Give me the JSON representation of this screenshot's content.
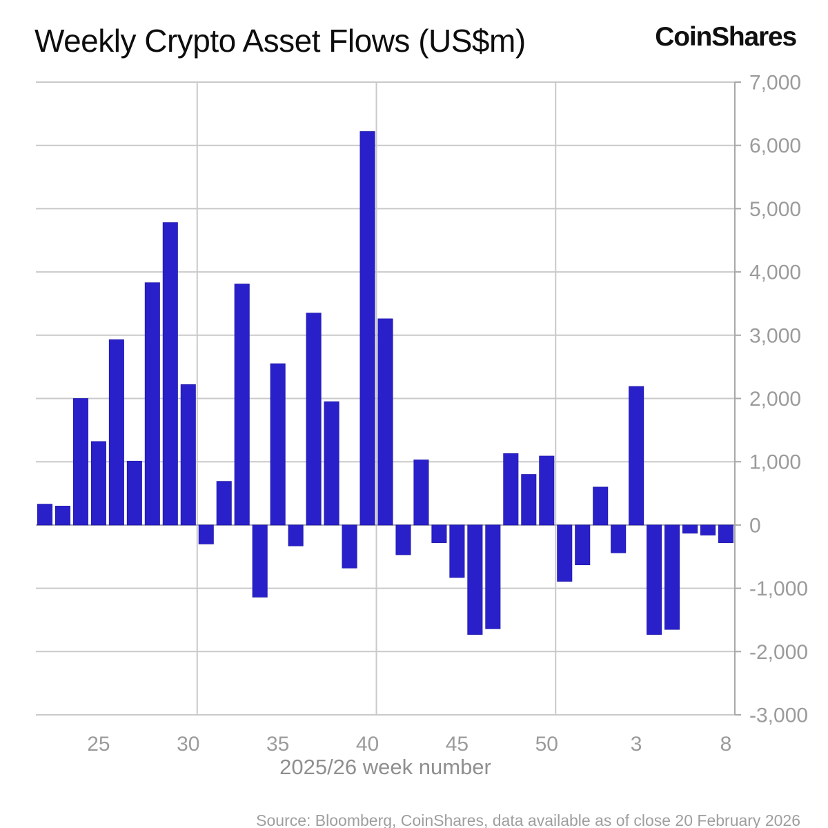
{
  "header": {
    "title": "Weekly Crypto Asset Flows (US$m)",
    "logo_text": "CoinShares"
  },
  "chart_data": {
    "type": "bar",
    "title": "Weekly Crypto Asset Flows (US$m)",
    "xlabel": "2025/26 week number",
    "ylabel": "",
    "ylim": [
      -3000,
      7000
    ],
    "grid": true,
    "legend_position": "none",
    "bar_color": "#2A20CA",
    "bar_edge_color": "#1E18A8",
    "gridline_color": "#c9c9c9",
    "axis_line_color": "#a8a8a8",
    "categories": [
      22,
      23,
      24,
      25,
      26,
      27,
      28,
      29,
      30,
      31,
      32,
      33,
      34,
      35,
      36,
      37,
      38,
      39,
      40,
      41,
      42,
      43,
      44,
      45,
      46,
      47,
      48,
      49,
      50,
      51,
      52,
      1,
      2,
      3,
      4,
      5,
      6,
      7,
      8
    ],
    "values": [
      330,
      300,
      2000,
      1320,
      2930,
      1010,
      3830,
      4780,
      2220,
      -300,
      690,
      3810,
      -1140,
      2550,
      -330,
      3350,
      1950,
      -680,
      6220,
      3260,
      -470,
      1030,
      -280,
      -830,
      -1730,
      -1640,
      1130,
      800,
      1090,
      -890,
      -630,
      600,
      -440,
      2190,
      -1730,
      -1650,
      -130,
      -160,
      -280
    ],
    "yticks": [
      {
        "value": 7000,
        "label": "7,000"
      },
      {
        "value": 6000,
        "label": "6,000"
      },
      {
        "value": 5000,
        "label": "5,000"
      },
      {
        "value": 4000,
        "label": "4,000"
      },
      {
        "value": 3000,
        "label": "3,000"
      },
      {
        "value": 2000,
        "label": "2,000"
      },
      {
        "value": 1000,
        "label": "1,000"
      },
      {
        "value": 0,
        "label": "0"
      },
      {
        "value": -1000,
        "label": "-1,000"
      },
      {
        "value": -2000,
        "label": "-2,000"
      },
      {
        "value": -3000,
        "label": "-3,000"
      }
    ],
    "xticks": [
      {
        "index": 3,
        "label": "25"
      },
      {
        "index": 8,
        "label": "30"
      },
      {
        "index": 13,
        "label": "35"
      },
      {
        "index": 18,
        "label": "40"
      },
      {
        "index": 23,
        "label": "45"
      },
      {
        "index": 28,
        "label": "50"
      },
      {
        "index": 33,
        "label": "3"
      },
      {
        "index": 38,
        "label": "8"
      }
    ],
    "vertical_gridlines_after_index": [
      8,
      18,
      28
    ]
  },
  "footer": {
    "source": "Source: Bloomberg, CoinShares, data available as of close 20 February 2026"
  }
}
